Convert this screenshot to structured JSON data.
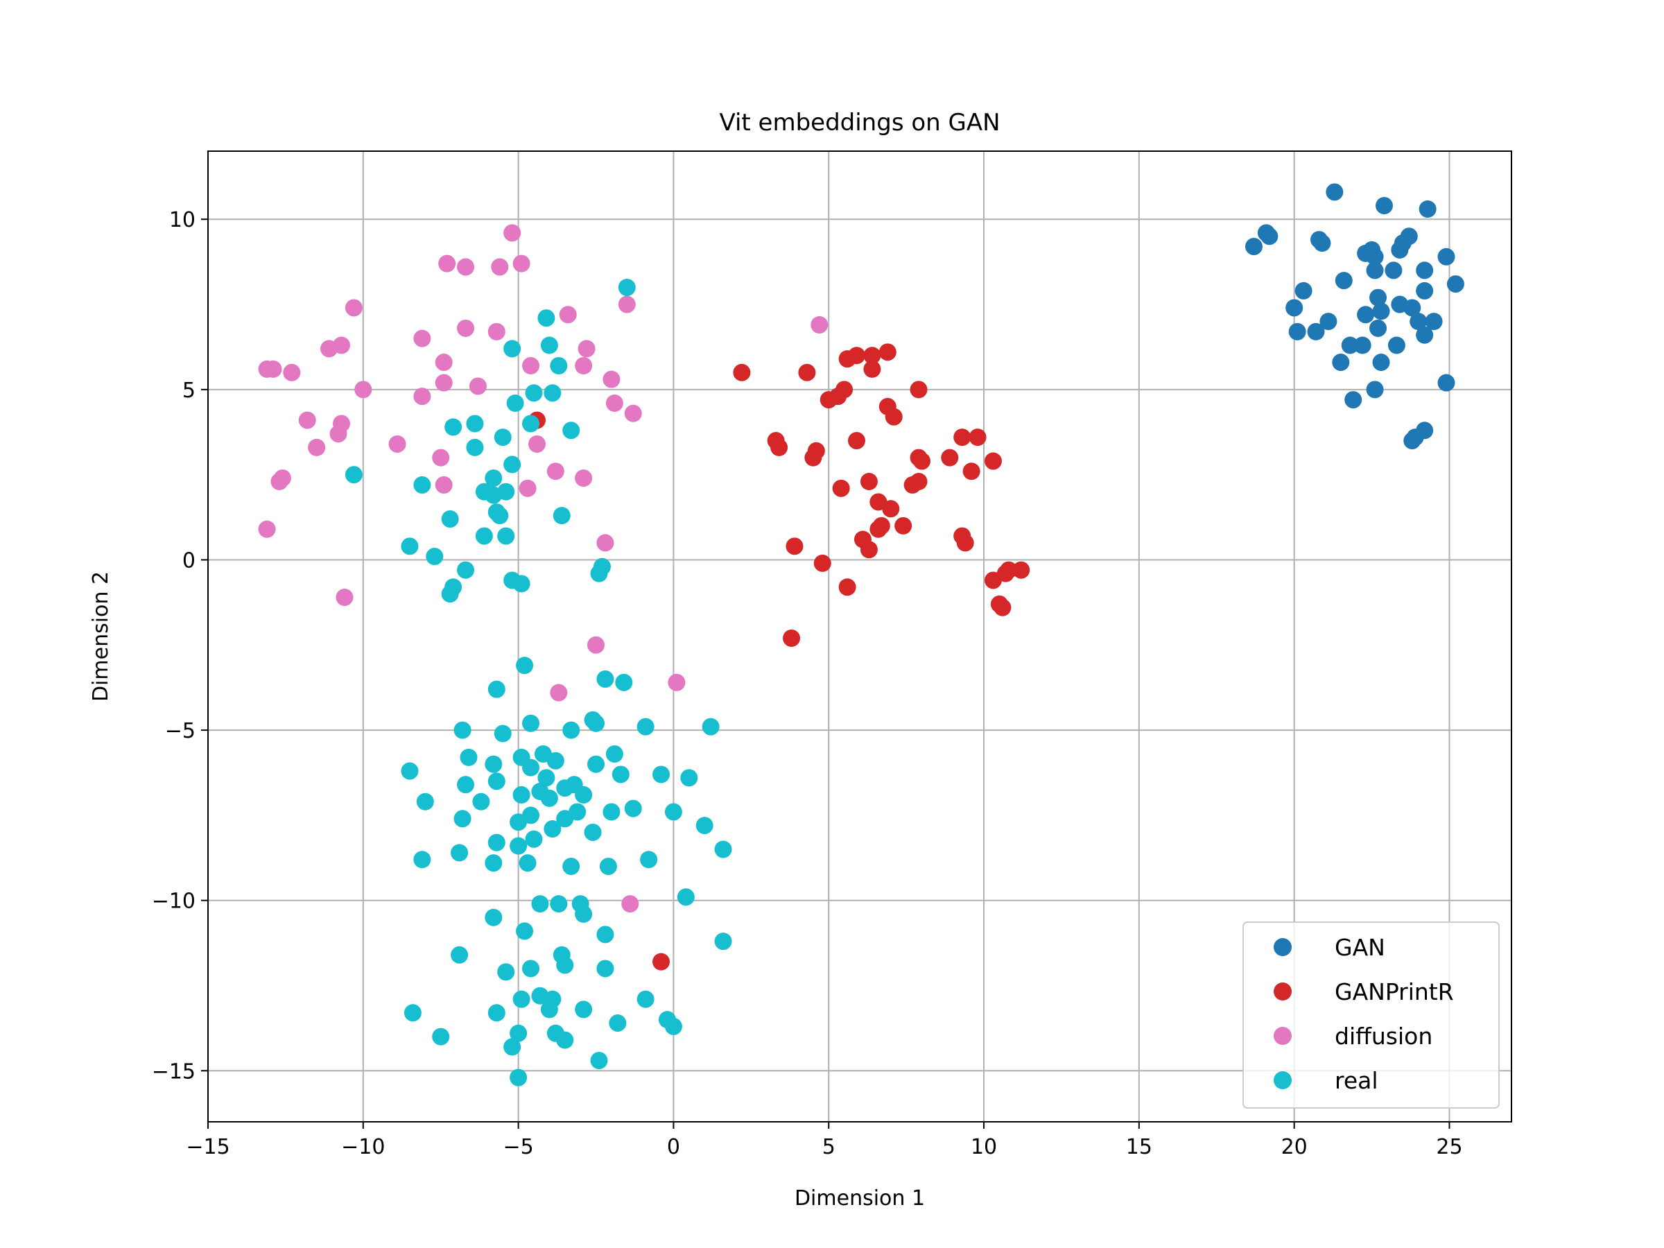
{
  "chart_data": {
    "type": "scatter",
    "title": "Vit embeddings on GAN",
    "xlabel": "Dimension 1",
    "ylabel": "Dimension 2",
    "xlim": [
      -15,
      27
    ],
    "ylim": [
      -16.5,
      12
    ],
    "xticks": [
      -15,
      -10,
      -5,
      0,
      5,
      10,
      15,
      20,
      25
    ],
    "xtick_labels": [
      "−15",
      "−10",
      "−5",
      "0",
      "5",
      "10",
      "15",
      "20",
      "25"
    ],
    "yticks": [
      -15,
      -10,
      -5,
      0,
      5,
      10
    ],
    "ytick_labels": [
      "−15",
      "−10",
      "−5",
      "0",
      "5",
      "10"
    ],
    "grid": true,
    "legend_position": "bottom-right",
    "series": [
      {
        "name": "GAN",
        "color": "#1f77b4",
        "points": [
          [
            21.3,
            10.8
          ],
          [
            22.9,
            10.4
          ],
          [
            24.3,
            10.3
          ],
          [
            19.1,
            9.6
          ],
          [
            19.2,
            9.5
          ],
          [
            18.7,
            9.2
          ],
          [
            20.8,
            9.4
          ],
          [
            20.9,
            9.3
          ],
          [
            22.3,
            9.0
          ],
          [
            22.5,
            9.1
          ],
          [
            22.6,
            8.9
          ],
          [
            23.4,
            9.1
          ],
          [
            23.7,
            9.5
          ],
          [
            23.5,
            9.3
          ],
          [
            24.9,
            8.9
          ],
          [
            22.6,
            8.5
          ],
          [
            23.2,
            8.5
          ],
          [
            24.2,
            8.5
          ],
          [
            20.3,
            7.9
          ],
          [
            21.6,
            8.2
          ],
          [
            22.7,
            7.7
          ],
          [
            24.2,
            7.9
          ],
          [
            25.2,
            8.1
          ],
          [
            20.0,
            7.4
          ],
          [
            21.1,
            7.0
          ],
          [
            22.3,
            7.2
          ],
          [
            22.8,
            7.3
          ],
          [
            23.4,
            7.5
          ],
          [
            23.8,
            7.4
          ],
          [
            24.0,
            7.0
          ],
          [
            24.5,
            7.0
          ],
          [
            20.1,
            6.7
          ],
          [
            20.7,
            6.7
          ],
          [
            22.7,
            6.8
          ],
          [
            24.2,
            6.6
          ],
          [
            21.8,
            6.3
          ],
          [
            22.2,
            6.3
          ],
          [
            23.3,
            6.3
          ],
          [
            21.5,
            5.8
          ],
          [
            22.8,
            5.8
          ],
          [
            24.9,
            5.2
          ],
          [
            22.6,
            5.0
          ],
          [
            21.9,
            4.7
          ],
          [
            24.2,
            3.8
          ],
          [
            23.9,
            3.6
          ],
          [
            23.8,
            3.5
          ]
        ]
      },
      {
        "name": "GANPrintR",
        "color": "#d62728",
        "points": [
          [
            5.6,
            5.9
          ],
          [
            5.9,
            6.0
          ],
          [
            6.4,
            6.0
          ],
          [
            6.9,
            6.1
          ],
          [
            6.4,
            5.6
          ],
          [
            4.3,
            5.5
          ],
          [
            2.2,
            5.5
          ],
          [
            5.0,
            4.7
          ],
          [
            5.3,
            4.8
          ],
          [
            5.5,
            5.0
          ],
          [
            6.9,
            4.5
          ],
          [
            7.1,
            4.2
          ],
          [
            7.9,
            5.0
          ],
          [
            -4.4,
            4.1
          ],
          [
            3.3,
            3.5
          ],
          [
            3.4,
            3.3
          ],
          [
            4.5,
            3.0
          ],
          [
            4.6,
            3.2
          ],
          [
            5.9,
            3.5
          ],
          [
            9.3,
            3.6
          ],
          [
            9.8,
            3.6
          ],
          [
            8.9,
            3.0
          ],
          [
            7.9,
            3.0
          ],
          [
            8.0,
            2.9
          ],
          [
            9.6,
            2.6
          ],
          [
            10.3,
            2.9
          ],
          [
            5.4,
            2.1
          ],
          [
            6.3,
            2.3
          ],
          [
            7.7,
            2.2
          ],
          [
            7.9,
            2.3
          ],
          [
            6.6,
            1.7
          ],
          [
            7.0,
            1.5
          ],
          [
            6.7,
            1.0
          ],
          [
            6.6,
            0.9
          ],
          [
            7.4,
            1.0
          ],
          [
            6.1,
            0.6
          ],
          [
            6.3,
            0.3
          ],
          [
            3.9,
            0.4
          ],
          [
            4.8,
            -0.1
          ],
          [
            9.3,
            0.7
          ],
          [
            9.4,
            0.5
          ],
          [
            5.6,
            -0.8
          ],
          [
            10.3,
            -0.6
          ],
          [
            10.8,
            -0.3
          ],
          [
            11.2,
            -0.3
          ],
          [
            10.7,
            -0.4
          ],
          [
            10.5,
            -1.3
          ],
          [
            10.6,
            -1.4
          ],
          [
            3.8,
            -2.3
          ],
          [
            -0.4,
            -11.8
          ]
        ]
      },
      {
        "name": "diffusion",
        "color": "#e377c2",
        "points": [
          [
            -5.2,
            9.6
          ],
          [
            -7.3,
            8.7
          ],
          [
            -6.7,
            8.6
          ],
          [
            -5.6,
            8.6
          ],
          [
            -4.9,
            8.7
          ],
          [
            -10.3,
            7.4
          ],
          [
            -3.4,
            7.2
          ],
          [
            -1.5,
            7.5
          ],
          [
            -6.7,
            6.8
          ],
          [
            -5.7,
            6.7
          ],
          [
            4.7,
            6.9
          ],
          [
            -8.1,
            6.5
          ],
          [
            -10.7,
            6.3
          ],
          [
            -11.1,
            6.2
          ],
          [
            -2.8,
            6.2
          ],
          [
            -4.6,
            5.7
          ],
          [
            -2.9,
            5.7
          ],
          [
            -7.4,
            5.8
          ],
          [
            -13.1,
            5.6
          ],
          [
            -12.9,
            5.6
          ],
          [
            -12.3,
            5.5
          ],
          [
            -10.0,
            5.0
          ],
          [
            -7.4,
            5.2
          ],
          [
            -6.3,
            5.1
          ],
          [
            -2.0,
            5.3
          ],
          [
            -8.1,
            4.8
          ],
          [
            -1.9,
            4.6
          ],
          [
            -1.3,
            4.3
          ],
          [
            -11.8,
            4.1
          ],
          [
            -10.7,
            4.0
          ],
          [
            -10.8,
            3.7
          ],
          [
            -8.9,
            3.4
          ],
          [
            -11.5,
            3.3
          ],
          [
            -4.4,
            3.4
          ],
          [
            -7.5,
            3.0
          ],
          [
            -3.8,
            2.6
          ],
          [
            -2.9,
            2.4
          ],
          [
            -12.6,
            2.4
          ],
          [
            -12.7,
            2.3
          ],
          [
            -7.4,
            2.2
          ],
          [
            -4.7,
            2.1
          ],
          [
            -13.1,
            0.9
          ],
          [
            -2.2,
            0.5
          ],
          [
            -10.6,
            -1.1
          ],
          [
            -2.5,
            -2.5
          ],
          [
            0.1,
            -3.6
          ],
          [
            -3.7,
            -3.9
          ],
          [
            -1.4,
            -10.1
          ]
        ]
      },
      {
        "name": "real",
        "color": "#17becf",
        "points": [
          [
            -1.5,
            8.0
          ],
          [
            -4.1,
            7.1
          ],
          [
            -5.2,
            6.2
          ],
          [
            -4.0,
            6.3
          ],
          [
            -3.7,
            5.7
          ],
          [
            -4.5,
            4.9
          ],
          [
            -3.9,
            4.9
          ],
          [
            -5.1,
            4.6
          ],
          [
            -6.4,
            4.0
          ],
          [
            -7.1,
            3.9
          ],
          [
            -4.6,
            4.0
          ],
          [
            -3.3,
            3.8
          ],
          [
            -5.5,
            3.6
          ],
          [
            -6.4,
            3.3
          ],
          [
            -10.3,
            2.5
          ],
          [
            -5.8,
            2.4
          ],
          [
            -5.2,
            2.8
          ],
          [
            -8.1,
            2.2
          ],
          [
            -6.1,
            2.0
          ],
          [
            -5.8,
            1.9
          ],
          [
            -5.4,
            2.0
          ],
          [
            -5.6,
            1.3
          ],
          [
            -5.7,
            1.4
          ],
          [
            -7.2,
            1.2
          ],
          [
            -3.6,
            1.3
          ],
          [
            -6.1,
            0.7
          ],
          [
            -5.4,
            0.7
          ],
          [
            -8.5,
            0.4
          ],
          [
            -7.7,
            0.1
          ],
          [
            -2.3,
            -0.2
          ],
          [
            -6.7,
            -0.3
          ],
          [
            -2.4,
            -0.4
          ],
          [
            -5.2,
            -0.6
          ],
          [
            -4.9,
            -0.7
          ],
          [
            -7.1,
            -0.8
          ],
          [
            -7.2,
            -1.0
          ],
          [
            -4.8,
            -3.1
          ],
          [
            -2.2,
            -3.5
          ],
          [
            -1.6,
            -3.6
          ],
          [
            -5.7,
            -3.8
          ],
          [
            -4.6,
            -4.8
          ],
          [
            -2.6,
            -4.7
          ],
          [
            -2.5,
            -4.8
          ],
          [
            -0.9,
            -4.9
          ],
          [
            1.2,
            -4.9
          ],
          [
            -6.8,
            -5.0
          ],
          [
            -3.3,
            -5.0
          ],
          [
            -5.5,
            -5.1
          ],
          [
            -8.5,
            -6.2
          ],
          [
            -6.6,
            -5.8
          ],
          [
            -5.8,
            -6.0
          ],
          [
            -4.9,
            -5.8
          ],
          [
            -4.2,
            -5.7
          ],
          [
            -3.8,
            -5.9
          ],
          [
            -2.5,
            -6.0
          ],
          [
            -1.9,
            -5.7
          ],
          [
            -4.6,
            -6.1
          ],
          [
            -1.7,
            -6.3
          ],
          [
            -0.4,
            -6.3
          ],
          [
            0.5,
            -6.4
          ],
          [
            -6.7,
            -6.6
          ],
          [
            -5.7,
            -6.5
          ],
          [
            -4.1,
            -6.4
          ],
          [
            -3.5,
            -6.7
          ],
          [
            -4.3,
            -6.8
          ],
          [
            -3.2,
            -6.6
          ],
          [
            -2.9,
            -6.9
          ],
          [
            -6.2,
            -7.1
          ],
          [
            -4.9,
            -6.9
          ],
          [
            -4.0,
            -7.0
          ],
          [
            -8.0,
            -7.1
          ],
          [
            -6.8,
            -7.6
          ],
          [
            -4.6,
            -7.5
          ],
          [
            -3.5,
            -7.6
          ],
          [
            -3.1,
            -7.4
          ],
          [
            -2.0,
            -7.4
          ],
          [
            -1.3,
            -7.3
          ],
          [
            0.0,
            -7.4
          ],
          [
            -5.0,
            -7.7
          ],
          [
            -3.9,
            -7.9
          ],
          [
            1.0,
            -7.8
          ],
          [
            -5.7,
            -8.3
          ],
          [
            -4.5,
            -8.2
          ],
          [
            -2.6,
            -8.0
          ],
          [
            1.6,
            -8.5
          ],
          [
            -6.9,
            -8.6
          ],
          [
            -5.0,
            -8.4
          ],
          [
            -8.1,
            -8.8
          ],
          [
            -5.8,
            -8.9
          ],
          [
            -4.7,
            -8.9
          ],
          [
            -3.3,
            -9.0
          ],
          [
            -2.1,
            -9.0
          ],
          [
            -0.8,
            -8.8
          ],
          [
            0.4,
            -9.9
          ],
          [
            -4.3,
            -10.1
          ],
          [
            -3.7,
            -10.1
          ],
          [
            -3.0,
            -10.1
          ],
          [
            -2.9,
            -10.4
          ],
          [
            -5.8,
            -10.5
          ],
          [
            -4.8,
            -10.9
          ],
          [
            -2.2,
            -11.0
          ],
          [
            1.6,
            -11.2
          ],
          [
            -6.9,
            -11.6
          ],
          [
            -3.6,
            -11.6
          ],
          [
            -3.5,
            -11.9
          ],
          [
            -5.4,
            -12.1
          ],
          [
            -4.6,
            -12.0
          ],
          [
            -2.2,
            -12.0
          ],
          [
            -4.3,
            -12.8
          ],
          [
            -4.9,
            -12.9
          ],
          [
            -3.9,
            -12.9
          ],
          [
            -0.9,
            -12.9
          ],
          [
            -8.4,
            -13.3
          ],
          [
            -5.7,
            -13.3
          ],
          [
            -4.0,
            -13.2
          ],
          [
            -2.9,
            -13.2
          ],
          [
            -1.8,
            -13.6
          ],
          [
            -0.2,
            -13.5
          ],
          [
            0.0,
            -13.7
          ],
          [
            -7.5,
            -14.0
          ],
          [
            -5.0,
            -13.9
          ],
          [
            -3.8,
            -13.9
          ],
          [
            -3.5,
            -14.1
          ],
          [
            -5.2,
            -14.3
          ],
          [
            -2.4,
            -14.7
          ],
          [
            -5.0,
            -15.2
          ]
        ]
      }
    ]
  }
}
